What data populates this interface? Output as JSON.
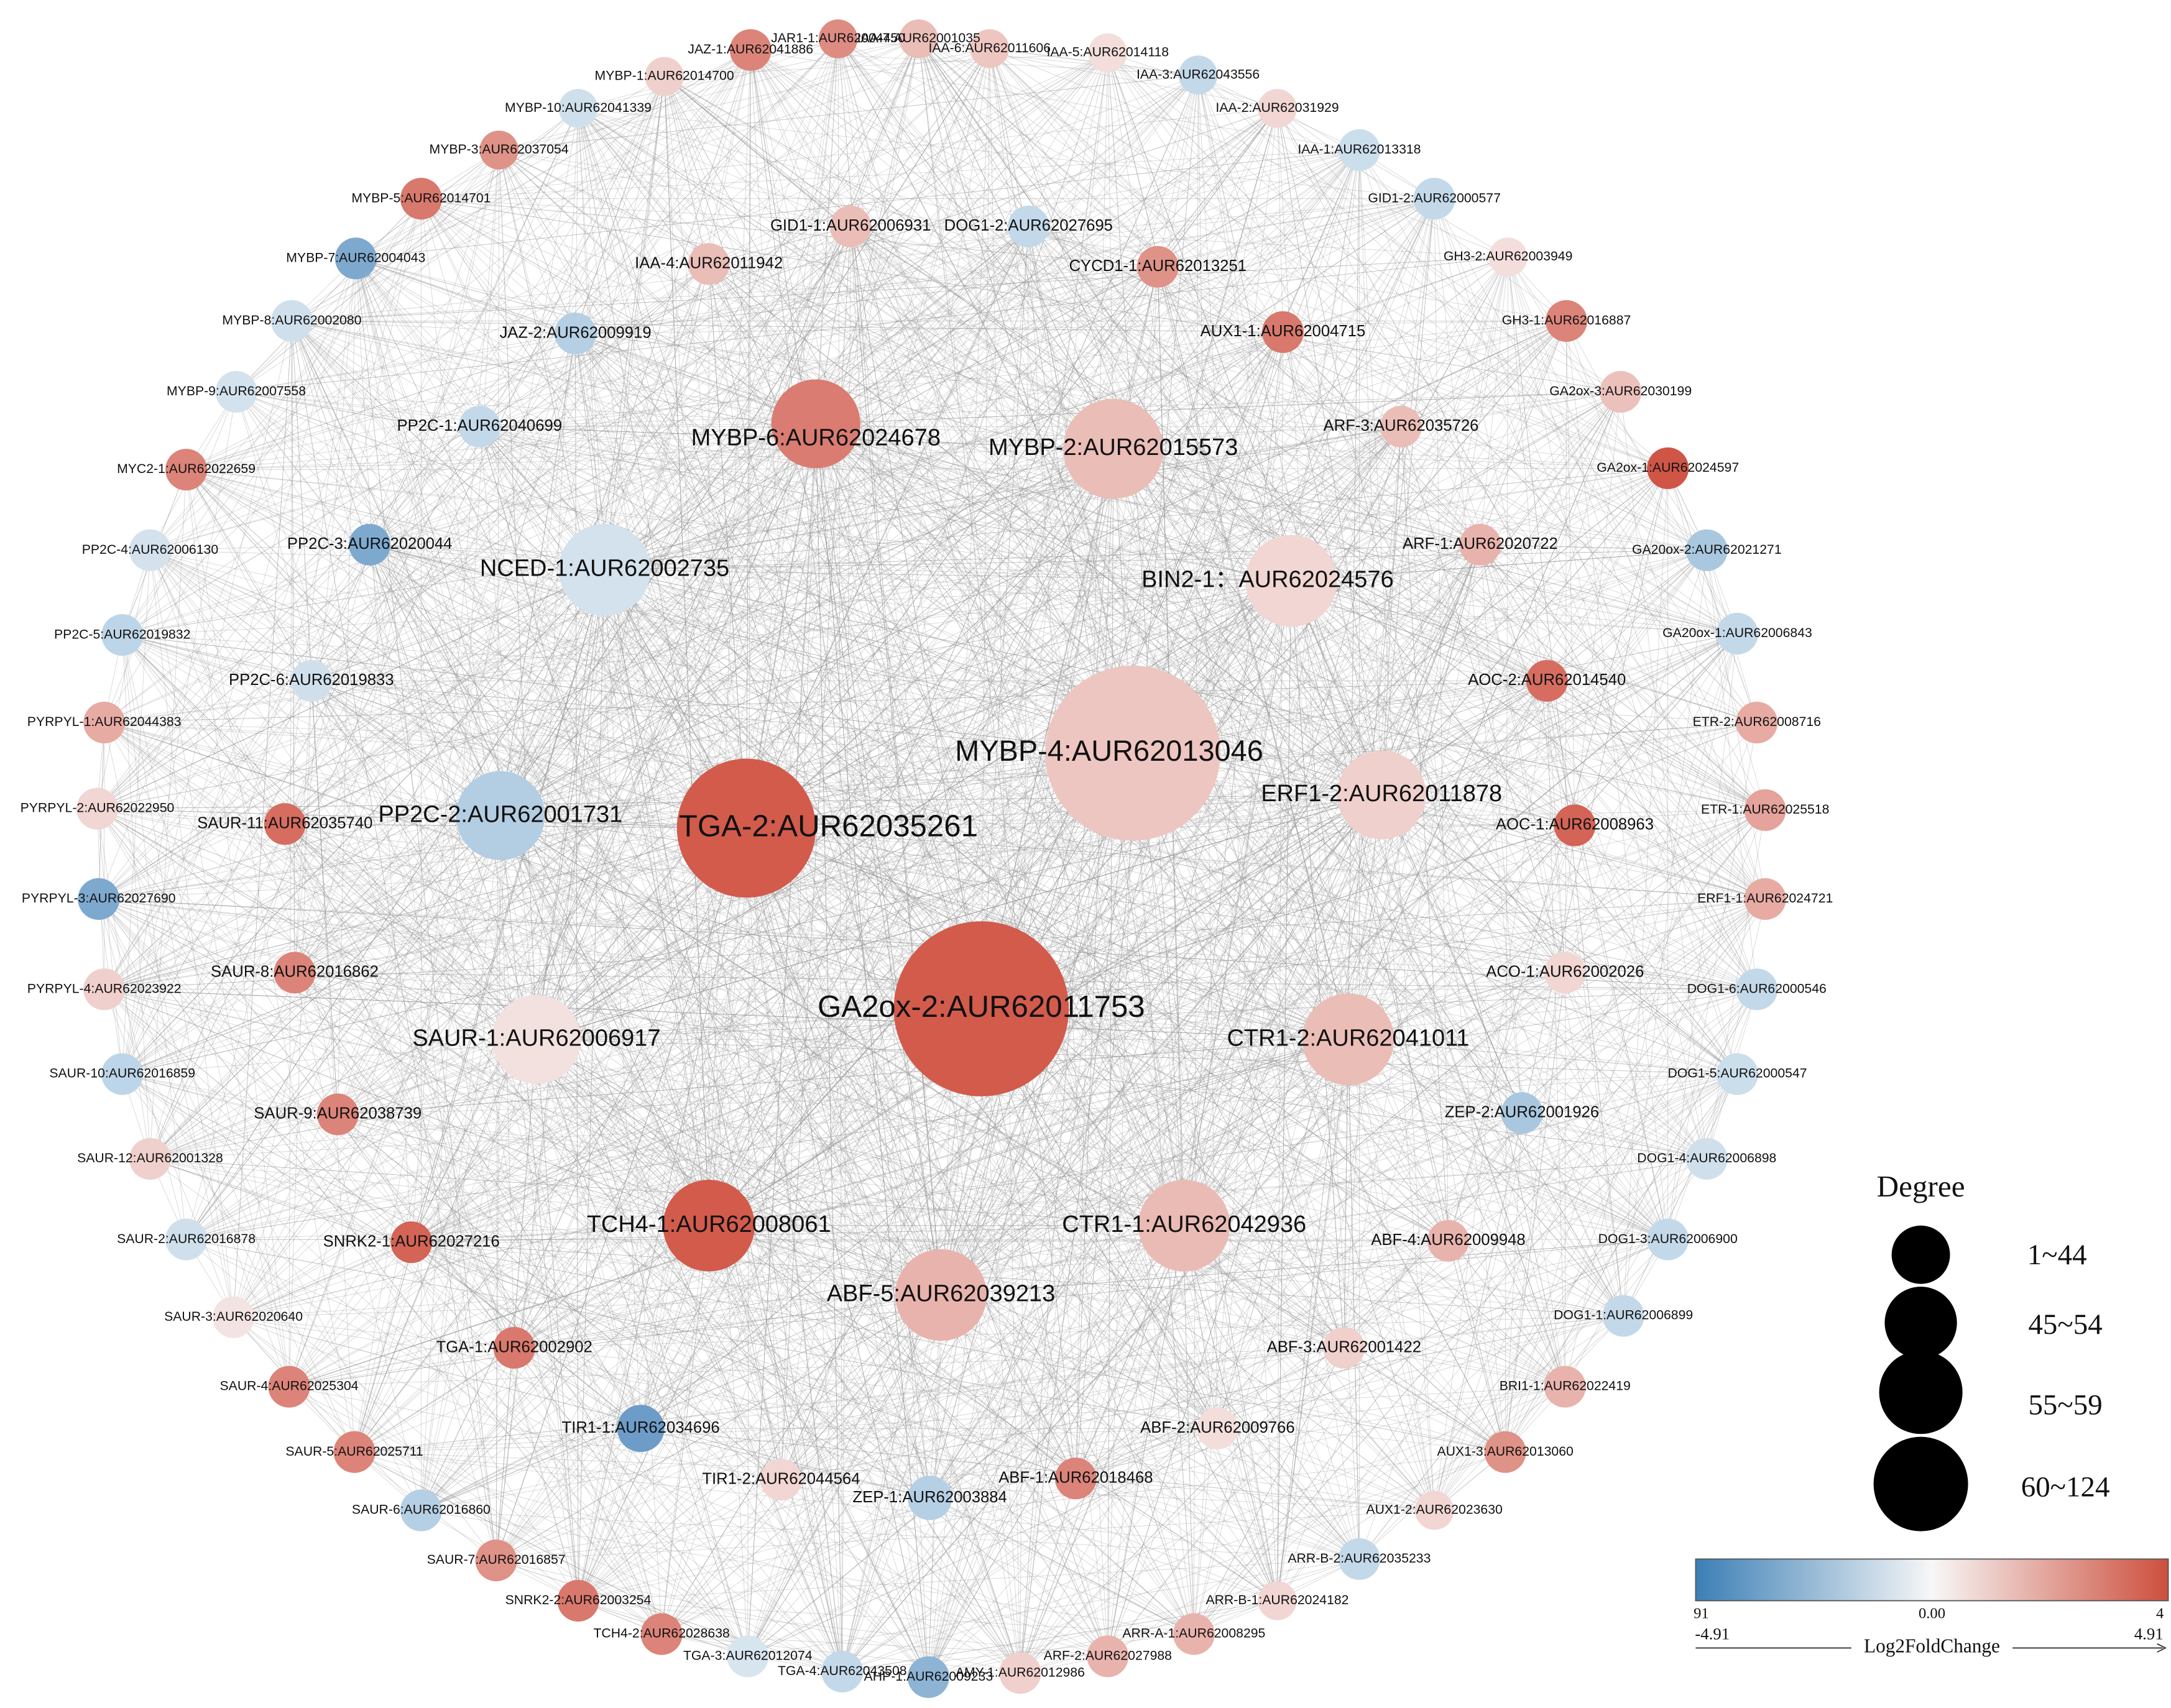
{
  "nodes": [
    {
      "label": "IAA-7:AUR62001035",
      "color": "#ebbdb7"
    },
    {
      "label": "JAR1-1:AUR62004450",
      "color": "#de8c82"
    },
    {
      "label": "IAA-6:AUR62011606",
      "color": "#eec6c1"
    },
    {
      "label": "JAZ-1:AUR62041886",
      "color": "#dc8479"
    },
    {
      "label": "IAA-5:AUR62014118",
      "color": "#f3dedc"
    },
    {
      "label": "MYBP-1:AUR62014700",
      "color": "#f0d0cc"
    },
    {
      "label": "IAA-3:AUR62043556",
      "color": "#c3d9ea"
    },
    {
      "label": "MYBP-10:AUR62041339",
      "color": "#cfe0ec"
    },
    {
      "label": "IAA-2:AUR62031929",
      "color": "#f1d6d3"
    },
    {
      "label": "MYBP-3:AUR62037054",
      "color": "#df9287"
    },
    {
      "label": "IAA-1:AUR62013318",
      "color": "#cbdeeb"
    },
    {
      "label": "MYBP-5:AUR62014701",
      "color": "#d9786c"
    },
    {
      "label": "GID1-2:AUR62000577",
      "color": "#c3d9ea"
    },
    {
      "label": "MYBP-7:AUR62004043",
      "color": "#7ea9cf"
    },
    {
      "label": "GH3-2:AUR62003949",
      "color": "#f3dedc"
    },
    {
      "label": "MYBP-8:AUR62002080",
      "color": "#cfe0ec"
    },
    {
      "label": "GH3-1:AUR62016887",
      "color": "#dc8479"
    },
    {
      "label": "MYBP-9:AUR62007558",
      "color": "#d3e2ed"
    },
    {
      "label": "GA2ox-3:AUR62030199",
      "color": "#ecc0bb"
    },
    {
      "label": "MYC2-1:AUR62022659",
      "color": "#dc8479"
    },
    {
      "label": "GA2ox-1:AUR62024597",
      "color": "#cf5546"
    },
    {
      "label": "PP2C-4:AUR62006130",
      "color": "#d3e2ed"
    },
    {
      "label": "GA20ox-2:AUR62021271",
      "color": "#a9c8e0"
    },
    {
      "label": "PP2C-5:AUR62019832",
      "color": "#bdd5e8"
    },
    {
      "label": "GA20ox-1:AUR62006843",
      "color": "#c3d9ea"
    },
    {
      "label": "PYRPYL-1:AUR62044383",
      "color": "#e7aba4"
    },
    {
      "label": "ETR-2:AUR62008716",
      "color": "#e7aba4"
    },
    {
      "label": "PYRPYL-2:AUR62022950",
      "color": "#f1d6d3"
    },
    {
      "label": "ETR-1:AUR62025518",
      "color": "#e5a39b"
    },
    {
      "label": "PYRPYL-3:AUR62027690",
      "color": "#7ea9cf"
    },
    {
      "label": "ERF1-1:AUR62024721",
      "color": "#e7aba4"
    },
    {
      "label": "PYRPYL-4:AUR62023922",
      "color": "#f0d0cc"
    },
    {
      "label": "DOG1-6:AUR62000546",
      "color": "#c3d9ea"
    },
    {
      "label": "SAUR-10:AUR62016859",
      "color": "#bdd5e8"
    },
    {
      "label": "DOG1-5:AUR62000547",
      "color": "#cbdeeb"
    },
    {
      "label": "SAUR-12:AUR62001328",
      "color": "#f0d0cc"
    },
    {
      "label": "DOG1-4:AUR62006898",
      "color": "#cfe0ec"
    },
    {
      "label": "SAUR-2:AUR62016878",
      "color": "#cfe0ec"
    },
    {
      "label": "DOG1-3:AUR62006900",
      "color": "#c3d9ea"
    },
    {
      "label": "SAUR-3:AUR62020640",
      "color": "#f3e3e2"
    },
    {
      "label": "DOG1-1:AUR62006899",
      "color": "#c3d9ea"
    },
    {
      "label": "SAUR-4:AUR62025304",
      "color": "#dc8479"
    },
    {
      "label": "BRI1-1:AUR62022419",
      "color": "#e9b3ad"
    },
    {
      "label": "SAUR-5:AUR62025711",
      "color": "#dc8479"
    },
    {
      "label": "AUX1-3:AUR62013060",
      "color": "#df9287"
    },
    {
      "label": "SAUR-6:AUR62016860",
      "color": "#b5cfe4"
    },
    {
      "label": "AUX1-2:AUR62023630",
      "color": "#f1d6d3"
    },
    {
      "label": "SAUR-7:AUR62016857",
      "color": "#df9287"
    },
    {
      "label": "ARR-B-2:AUR62035233",
      "color": "#c3d9ea"
    },
    {
      "label": "SNRK2-2:AUR62003254",
      "color": "#d9786c"
    },
    {
      "label": "ARR-B-1:AUR62024182",
      "color": "#f1d6d3"
    },
    {
      "label": "TCH4-2:AUR62028638",
      "color": "#dc8479"
    },
    {
      "label": "ARR-A-1:AUR62008295",
      "color": "#e9b3ad"
    },
    {
      "label": "TGA-3:AUR62012074",
      "color": "#d7e5ee"
    },
    {
      "label": "ARF-2:AUR62027988",
      "color": "#e9b3ad"
    },
    {
      "label": "TGA-4:AUR62043508",
      "color": "#c3d9ea"
    },
    {
      "label": "AMY-1:AUR62012986",
      "color": "#f0d0cc"
    },
    {
      "label": "AHP-1:AUR62009233",
      "color": "#8db3d5"
    },
    {
      "label": "GID1-1:AUR62006931",
      "color": "#ebbdb7"
    },
    {
      "label": "DOG1-2:AUR62027695",
      "color": "#c3d9ea"
    },
    {
      "label": "IAA-4:AUR62011942",
      "color": "#ebbdb7"
    },
    {
      "label": "CYCD1-1:AUR62013251",
      "color": "#df9287"
    },
    {
      "label": "JAZ-2:AUR62009919",
      "color": "#b5cfe4"
    },
    {
      "label": "AUX1-1:AUR62004715",
      "color": "#d9786c"
    },
    {
      "label": "PP2C-1:AUR62040699",
      "color": "#c3d9ea"
    },
    {
      "label": "ARF-3:AUR62035726",
      "color": "#ebbdb7"
    },
    {
      "label": "PP2C-3:AUR62020044",
      "color": "#7ea9cf"
    },
    {
      "label": "ARF-1:AUR62020722",
      "color": "#e9b3ad"
    },
    {
      "label": "PP2C-6:AUR62019833",
      "color": "#cfe0ec"
    },
    {
      "label": "AOC-2:AUR62014540",
      "color": "#d66d60"
    },
    {
      "label": "SAUR-11:AUR62035740",
      "color": "#d66d60"
    },
    {
      "label": "AOC-1:AUR62008963",
      "color": "#d36456"
    },
    {
      "label": "SAUR-8:AUR62016862",
      "color": "#dc8479"
    },
    {
      "label": "ACO-1:AUR62002026",
      "color": "#f1d6d3"
    },
    {
      "label": "SAUR-9:AUR62038739",
      "color": "#dc8479"
    },
    {
      "label": "ZEP-2:AUR62001926",
      "color": "#a9c8e0"
    },
    {
      "label": "SNRK2-1:AUR62027216",
      "color": "#d36456"
    },
    {
      "label": "ABF-4:AUR62009948",
      "color": "#e9b3ad"
    },
    {
      "label": "TGA-1:AUR62002902",
      "color": "#d9786c"
    },
    {
      "label": "ABF-3:AUR62001422",
      "color": "#f0d0cc"
    },
    {
      "label": "TIR1-1:AUR62034696",
      "color": "#6d9cc8"
    },
    {
      "label": "ABF-2:AUR62009766",
      "color": "#f3dedc"
    },
    {
      "label": "TIR1-2:AUR62044564",
      "color": "#f1d6d3"
    },
    {
      "label": "ABF-1:AUR62018468",
      "color": "#dc8479"
    },
    {
      "label": "ZEP-1:AUR62003884",
      "color": "#b5cfe4"
    },
    {
      "label": "MYBP-6:AUR62024678",
      "color": "#da7c71"
    },
    {
      "label": "MYBP-2:AUR62015573",
      "color": "#ebbdb7"
    },
    {
      "label": "NCED-1:AUR62002735",
      "color": "#d3e2ed"
    },
    {
      "label": "BIN2-1：AUR62024576",
      "color": "#f1d6d3"
    },
    {
      "label": "MYBP-4:AUR62013046",
      "color": "#edc6c1"
    },
    {
      "label": "PP2C-2:AUR62001731",
      "color": "#b3cde2"
    },
    {
      "label": "TGA-2:AUR62035261",
      "color": "#d25b4c"
    },
    {
      "label": "ERF1-2:AUR62011878",
      "color": "#efd0cc"
    },
    {
      "label": "GA2ox-2:AUR62011753",
      "color": "#d25b4c"
    },
    {
      "label": "SAUR-1:AUR62006917",
      "color": "#f3e1df"
    },
    {
      "label": "CTR1-2:AUR62041011",
      "color": "#ebbdb7"
    },
    {
      "label": "TCH4-1:AUR62008061",
      "color": "#d25b4c"
    },
    {
      "label": "CTR1-1:AUR62042936",
      "color": "#eabbb5"
    },
    {
      "label": "ABF-5:AUR62039213",
      "color": "#e9b3ad"
    }
  ],
  "legend": {
    "degree": {
      "title": "Degree",
      "classes": [
        "1~44",
        "45~54",
        "55~59",
        "60~124"
      ]
    },
    "colorbar": {
      "title": "Log2FoldChange",
      "clipped_left": "91",
      "middle": "0.00",
      "clipped_right": "4",
      "min": "-4.91",
      "max": "4.91",
      "low_color": "#3b7fb6",
      "mid_color": "#f7f7f7",
      "high_color": "#cd4f3d"
    }
  }
}
